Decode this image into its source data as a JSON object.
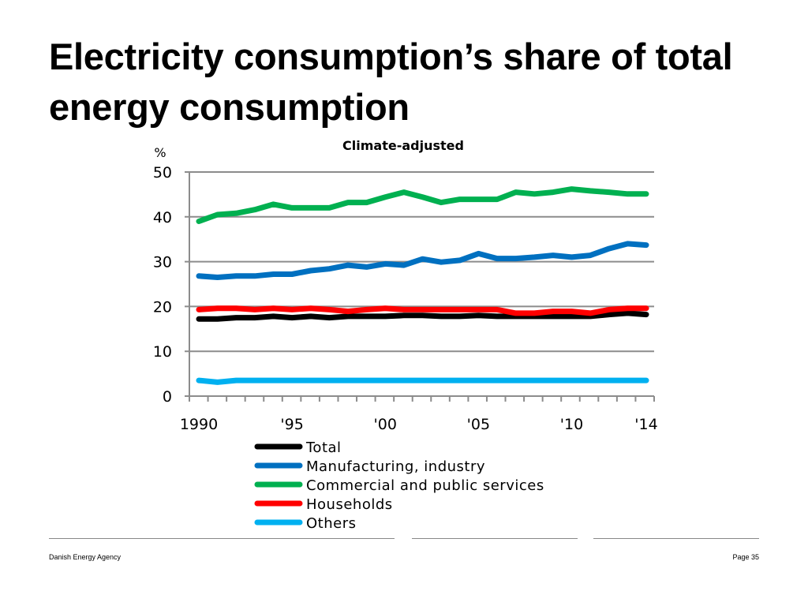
{
  "slide": {
    "title": "Electricity consumption’s share of total energy consumption",
    "footer_left": "Danish Energy Agency",
    "footer_right": "Page 35"
  },
  "chart_data": {
    "type": "line",
    "title": "Climate-adjusted",
    "ylabel": "%",
    "xlabel": "",
    "ylim": [
      0,
      50
    ],
    "yticks": [
      0,
      10,
      20,
      30,
      40,
      50
    ],
    "x": [
      1990,
      1991,
      1992,
      1993,
      1994,
      1995,
      1996,
      1997,
      1998,
      1999,
      2000,
      2001,
      2002,
      2003,
      2004,
      2005,
      2006,
      2007,
      2008,
      2009,
      2010,
      2011,
      2012,
      2013,
      2014
    ],
    "xticks": [
      {
        "value": 1990,
        "label": "1990"
      },
      {
        "value": 1995,
        "label": "'95"
      },
      {
        "value": 2000,
        "label": "'00"
      },
      {
        "value": 2005,
        "label": "'05"
      },
      {
        "value": 2010,
        "label": "'10"
      },
      {
        "value": 2014,
        "label": "'14"
      }
    ],
    "grid": true,
    "legend": "bottom",
    "series": [
      {
        "name": "Total",
        "color": "#000000",
        "values": [
          17.2,
          17.2,
          17.5,
          17.5,
          17.8,
          17.5,
          17.8,
          17.5,
          17.8,
          17.8,
          17.8,
          18.0,
          18.0,
          17.8,
          17.8,
          18.0,
          17.8,
          17.8,
          17.8,
          17.8,
          17.8,
          17.8,
          18.2,
          18.5,
          18.2
        ]
      },
      {
        "name": "Manufacturing, industry",
        "color": "#0070c0",
        "values": [
          26.8,
          26.5,
          26.8,
          26.8,
          27.2,
          27.2,
          28.0,
          28.4,
          29.2,
          28.8,
          29.5,
          29.2,
          30.6,
          29.9,
          30.3,
          31.8,
          30.7,
          30.7,
          31.0,
          31.4,
          31.0,
          31.4,
          32.9,
          34.0,
          33.7
        ]
      },
      {
        "name": "Commercial and public services",
        "color": "#00b050",
        "values": [
          39.0,
          40.5,
          40.8,
          41.6,
          42.8,
          42.0,
          42.0,
          42.0,
          43.2,
          43.2,
          44.4,
          45.5,
          44.4,
          43.2,
          43.9,
          43.9,
          43.9,
          45.5,
          45.1,
          45.5,
          46.2,
          45.8,
          45.5,
          45.1,
          45.1
        ]
      },
      {
        "name": "Households",
        "color": "#ff0000",
        "values": [
          19.3,
          19.6,
          19.6,
          19.3,
          19.6,
          19.3,
          19.6,
          19.3,
          18.9,
          19.3,
          19.6,
          19.3,
          19.3,
          19.3,
          19.3,
          19.3,
          19.3,
          18.5,
          18.5,
          18.9,
          18.9,
          18.5,
          19.3,
          19.6,
          19.6
        ]
      },
      {
        "name": "Others",
        "color": "#00b0f0",
        "values": [
          3.5,
          3.1,
          3.5,
          3.5,
          3.5,
          3.5,
          3.5,
          3.5,
          3.5,
          3.5,
          3.5,
          3.5,
          3.5,
          3.5,
          3.5,
          3.5,
          3.5,
          3.5,
          3.5,
          3.5,
          3.5,
          3.5,
          3.5,
          3.5,
          3.5
        ]
      }
    ]
  }
}
